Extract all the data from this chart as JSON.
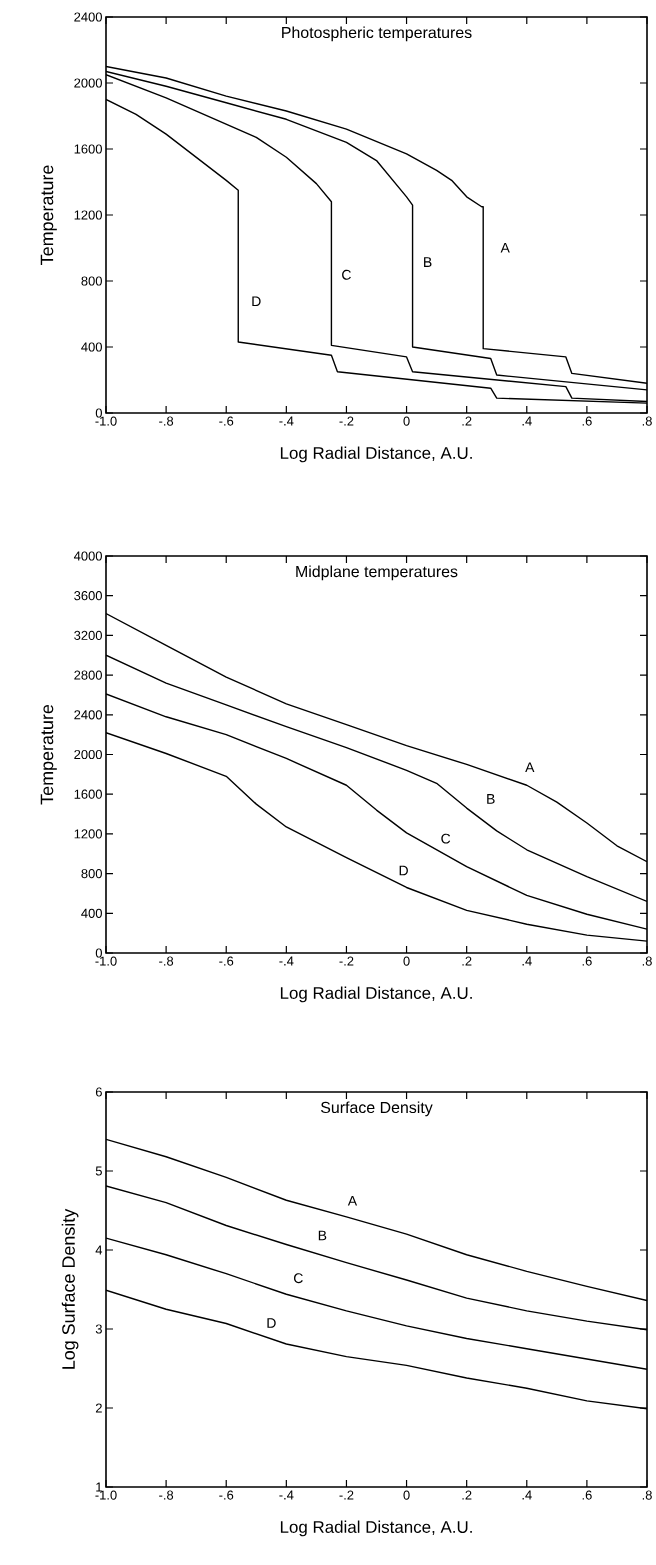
{
  "chart_data": [
    {
      "type": "line",
      "title": "Photospheric temperatures",
      "xlabel": "Log Radial Distance, A.U.",
      "ylabel": "Temperature",
      "color": "#000000",
      "marker": "none",
      "line_style": "solid",
      "grid": false,
      "xlim": [
        -1.0,
        0.8
      ],
      "ylim": [
        0,
        2400
      ],
      "xticks": [
        {
          "value": -1.0,
          "label": "-1.0"
        },
        {
          "value": -0.8,
          "label": "-.8"
        },
        {
          "value": -0.6,
          "label": "-.6"
        },
        {
          "value": -0.4,
          "label": "-.4"
        },
        {
          "value": -0.2,
          "label": "-.2"
        },
        0,
        {
          "value": 0.2,
          "label": ".2"
        },
        {
          "value": 0.4,
          "label": ".4"
        },
        {
          "value": 0.6,
          "label": ".6"
        },
        {
          "value": 0.8,
          "label": ".8"
        }
      ],
      "yticks": [
        0,
        400,
        800,
        1200,
        1600,
        2000,
        2400
      ],
      "series": [
        {
          "name": "A",
          "x": [
            -1.0,
            -0.8,
            -0.6,
            -0.4,
            -0.2,
            0.0,
            0.1,
            0.15,
            0.2,
            0.25,
            0.255,
            0.255,
            0.53,
            0.55,
            0.8
          ],
          "values": [
            2100,
            2030,
            1920,
            1830,
            1720,
            1570,
            1470,
            1410,
            1310,
            1250,
            1250,
            390,
            340,
            240,
            180
          ]
        },
        {
          "name": "B",
          "x": [
            -1.0,
            -0.8,
            -0.6,
            -0.4,
            -0.2,
            -0.1,
            0.0,
            0.02,
            0.02,
            0.28,
            0.3,
            0.8
          ],
          "values": [
            2070,
            1980,
            1880,
            1780,
            1640,
            1530,
            1310,
            1260,
            400,
            330,
            230,
            140
          ]
        },
        {
          "name": "C",
          "x": [
            -1.0,
            -0.8,
            -0.6,
            -0.5,
            -0.4,
            -0.3,
            -0.25,
            -0.25,
            0.0,
            0.02,
            0.53,
            0.55,
            0.8
          ],
          "values": [
            2050,
            1910,
            1750,
            1670,
            1550,
            1390,
            1280,
            410,
            340,
            250,
            160,
            90,
            70
          ]
        },
        {
          "name": "D",
          "x": [
            -1.0,
            -0.9,
            -0.8,
            -0.7,
            -0.6,
            -0.56,
            -0.56,
            -0.25,
            -0.23,
            0.28,
            0.3,
            0.8
          ],
          "values": [
            1900,
            1810,
            1690,
            1550,
            1410,
            1350,
            430,
            350,
            250,
            150,
            90,
            60
          ]
        }
      ]
    },
    {
      "type": "line",
      "title": "Midplane temperatures",
      "xlabel": "Log Radial Distance, A.U.",
      "ylabel": "Temperature",
      "color": "#000000",
      "marker": "none",
      "line_style": "solid",
      "grid": false,
      "xlim": [
        -1.0,
        0.8
      ],
      "ylim": [
        0,
        4000
      ],
      "xticks": [
        {
          "value": -1.0,
          "label": "-1.0"
        },
        {
          "value": -0.8,
          "label": "-.8"
        },
        {
          "value": -0.6,
          "label": "-.6"
        },
        {
          "value": -0.4,
          "label": "-.4"
        },
        {
          "value": -0.2,
          "label": "-.2"
        },
        0,
        {
          "value": 0.2,
          "label": ".2"
        },
        {
          "value": 0.4,
          "label": ".4"
        },
        {
          "value": 0.6,
          "label": ".6"
        },
        {
          "value": 0.8,
          "label": ".8"
        }
      ],
      "yticks": [
        0,
        400,
        800,
        1200,
        1600,
        2000,
        2400,
        2800,
        3200,
        3600,
        4000
      ],
      "series": [
        {
          "name": "A",
          "x": [
            -1.0,
            -0.8,
            -0.6,
            -0.4,
            -0.2,
            0.0,
            0.2,
            0.4,
            0.5,
            0.6,
            0.7,
            0.8
          ],
          "values": [
            3420,
            3100,
            2780,
            2510,
            2300,
            2090,
            1900,
            1690,
            1520,
            1310,
            1080,
            920
          ]
        },
        {
          "name": "B",
          "x": [
            -1.0,
            -0.8,
            -0.6,
            -0.4,
            -0.2,
            0.0,
            0.1,
            0.2,
            0.3,
            0.4,
            0.6,
            0.8
          ],
          "values": [
            3000,
            2720,
            2500,
            2280,
            2070,
            1840,
            1710,
            1460,
            1230,
            1040,
            770,
            520
          ]
        },
        {
          "name": "C",
          "x": [
            -1.0,
            -0.8,
            -0.6,
            -0.4,
            -0.2,
            -0.1,
            0.0,
            0.2,
            0.4,
            0.6,
            0.8
          ],
          "values": [
            2610,
            2380,
            2200,
            1960,
            1690,
            1440,
            1210,
            870,
            580,
            390,
            240
          ]
        },
        {
          "name": "D",
          "x": [
            -1.0,
            -0.8,
            -0.6,
            -0.5,
            -0.4,
            -0.2,
            0.0,
            0.2,
            0.4,
            0.6,
            0.8
          ],
          "values": [
            2220,
            2010,
            1780,
            1500,
            1270,
            960,
            660,
            430,
            290,
            180,
            120
          ]
        }
      ]
    },
    {
      "type": "line",
      "title": "Surface Density",
      "xlabel": "Log Radial Distance, A.U.",
      "ylabel": "Log Surface Density",
      "color": "#000000",
      "marker": "none",
      "line_style": "solid",
      "grid": false,
      "xlim": [
        -1.0,
        0.8
      ],
      "ylim": [
        1,
        6
      ],
      "xticks": [
        {
          "value": -1.0,
          "label": "-1.0"
        },
        {
          "value": -0.8,
          "label": "-.8"
        },
        {
          "value": -0.6,
          "label": "-.6"
        },
        {
          "value": -0.4,
          "label": "-.4"
        },
        {
          "value": -0.2,
          "label": "-.2"
        },
        0,
        {
          "value": 0.2,
          "label": ".2"
        },
        {
          "value": 0.4,
          "label": ".4"
        },
        {
          "value": 0.6,
          "label": ".6"
        },
        {
          "value": 0.8,
          "label": ".8"
        }
      ],
      "yticks": [
        1,
        2,
        3,
        4,
        5,
        6
      ],
      "series": [
        {
          "name": "A",
          "x": [
            -1.0,
            -0.8,
            -0.6,
            -0.4,
            -0.2,
            0.0,
            0.2,
            0.4,
            0.6,
            0.8
          ],
          "values": [
            5.4,
            5.18,
            4.92,
            4.63,
            4.42,
            4.2,
            3.94,
            3.73,
            3.54,
            3.36
          ]
        },
        {
          "name": "B",
          "x": [
            -1.0,
            -0.8,
            -0.6,
            -0.4,
            -0.2,
            0.0,
            0.2,
            0.4,
            0.6,
            0.8
          ],
          "values": [
            4.81,
            4.6,
            4.31,
            4.07,
            3.84,
            3.62,
            3.39,
            3.23,
            3.1,
            2.99
          ]
        },
        {
          "name": "C",
          "x": [
            -1.0,
            -0.8,
            -0.6,
            -0.4,
            -0.2,
            0.0,
            0.2,
            0.4,
            0.6,
            0.8
          ],
          "values": [
            4.15,
            3.94,
            3.7,
            3.44,
            3.23,
            3.04,
            2.88,
            2.75,
            2.62,
            2.49
          ]
        },
        {
          "name": "D",
          "x": [
            -1.0,
            -0.8,
            -0.6,
            -0.4,
            -0.2,
            0.0,
            0.2,
            0.4,
            0.6,
            0.8
          ],
          "values": [
            3.49,
            3.25,
            3.07,
            2.81,
            2.65,
            2.54,
            2.38,
            2.25,
            2.09,
            1.99
          ]
        }
      ]
    }
  ]
}
